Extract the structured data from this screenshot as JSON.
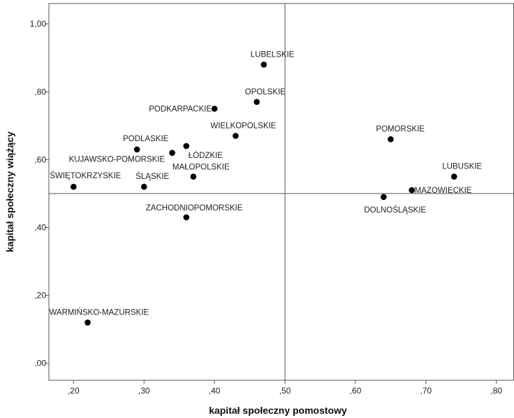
{
  "chart_data": {
    "type": "scatter",
    "xlabel": "kapitał społeczny pomostowy",
    "ylabel": "kapitał społeczny wiążący",
    "xlim": [
      0.165,
      0.825
    ],
    "ylim": [
      -0.05,
      1.06
    ],
    "x_ticks": [
      0.2,
      0.3,
      0.4,
      0.5,
      0.6,
      0.7,
      0.8
    ],
    "x_tick_labels": [
      ",20",
      ",30",
      ",40",
      ",50",
      ",60",
      ",70",
      ",80"
    ],
    "y_ticks": [
      0.0,
      0.2,
      0.4,
      0.6,
      0.8,
      1.0
    ],
    "y_tick_labels": [
      ",00",
      ",20",
      ",40",
      ",60",
      ",80",
      "1,00"
    ],
    "reference_lines": {
      "x": 0.5,
      "y": 0.5
    },
    "grid": false,
    "marker_color": "#000000",
    "points": [
      {
        "label": "LUBELSKIE",
        "x": 0.47,
        "y": 0.88
      },
      {
        "label": "OPOLSKIE",
        "x": 0.46,
        "y": 0.77
      },
      {
        "label": "PODKARPACKIE",
        "x": 0.4,
        "y": 0.75
      },
      {
        "label": "WIELKOPOLSKIE",
        "x": 0.43,
        "y": 0.67
      },
      {
        "label": "POMORSKIE",
        "x": 0.65,
        "y": 0.66
      },
      {
        "label": "PODLASKIE",
        "x": 0.29,
        "y": 0.63
      },
      {
        "label": "ŁÓDZKIE",
        "x": 0.36,
        "y": 0.64
      },
      {
        "label": "KUJAWSKO-POMORSKIE",
        "x": 0.34,
        "y": 0.62
      },
      {
        "label": "MAŁOPOLSKIE",
        "x": 0.37,
        "y": 0.55
      },
      {
        "label": "LUBUSKIE",
        "x": 0.74,
        "y": 0.55
      },
      {
        "label": "ŚWIĘTOKRZYSKIE",
        "x": 0.2,
        "y": 0.52
      },
      {
        "label": "ŚLĄSKIE",
        "x": 0.3,
        "y": 0.52
      },
      {
        "label": "MAZOWIECKIE",
        "x": 0.68,
        "y": 0.51
      },
      {
        "label": "DOLNOŚLĄSKIE",
        "x": 0.64,
        "y": 0.49
      },
      {
        "label": "ZACHODNIOPOMORSKIE",
        "x": 0.36,
        "y": 0.43
      },
      {
        "label": "WARMIŃSKO-MAZURSKIE",
        "x": 0.22,
        "y": 0.12
      }
    ]
  }
}
